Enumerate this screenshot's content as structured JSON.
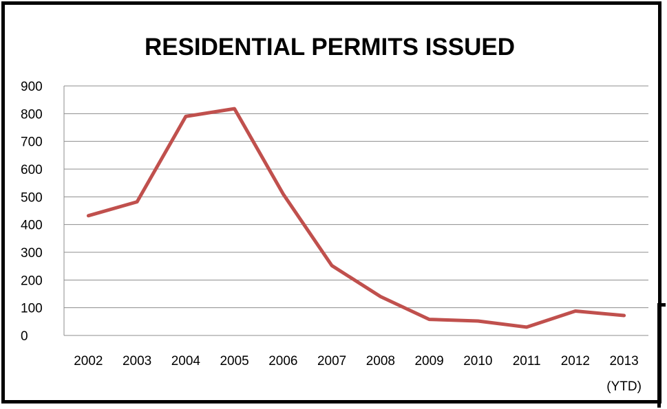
{
  "chart_data": {
    "type": "line",
    "title": "RESIDENTIAL PERMITS ISSUED",
    "xlabel": "",
    "ylabel": "",
    "categories": [
      "2002",
      "2003",
      "2004",
      "2005",
      "2006",
      "2007",
      "2008",
      "2009",
      "2010",
      "2011",
      "2012",
      "2013"
    ],
    "category_sublabels": [
      "",
      "",
      "",
      "",
      "",
      "",
      "",
      "",
      "",
      "",
      "",
      "(YTD)"
    ],
    "series": [
      {
        "values": [
          432,
          482,
          790,
          818,
          510,
          252,
          140,
          58,
          52,
          30,
          88,
          72
        ],
        "color": "#c0504d"
      }
    ],
    "ylim": [
      0,
      900
    ],
    "yticks": [
      0,
      100,
      200,
      300,
      400,
      500,
      600,
      700,
      800,
      900
    ],
    "grid": true,
    "legend": "none"
  }
}
